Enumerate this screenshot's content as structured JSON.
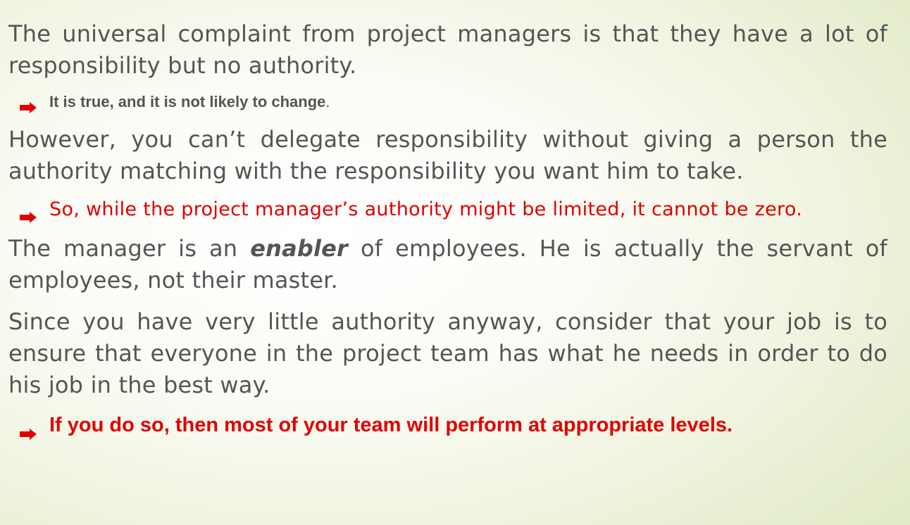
{
  "paragraph_1": "The universal complaint from project managers is that they have a lot of responsibility but no authority.",
  "bullet_1": {
    "bold_text": "It is true, and it is not likely to change",
    "trailing": "."
  },
  "paragraph_2": "However, you can’t delegate responsibility without giving a person the authority matching with the responsibility you want him to take.",
  "bullet_2": "So, while the project manager’s authority might be limited, it cannot be zero.",
  "paragraph_3": {
    "before": "The manager is an ",
    "emphasis": "enabler",
    "after": " of employees. He is actually the servant of employees, not their master."
  },
  "paragraph_4": "Since you have very little authority anyway, consider that your job is to ensure that everyone in the project team has what he needs in order to do his job in the best way.",
  "bullet_3": "If you do so, then most of your team will perform at appropriate levels.",
  "colors": {
    "body_text": "#555555",
    "highlight_red": "#e00000",
    "bullet_marker": "#e00000"
  },
  "icons": {
    "bullet": "right-arrow-bullet-icon"
  }
}
